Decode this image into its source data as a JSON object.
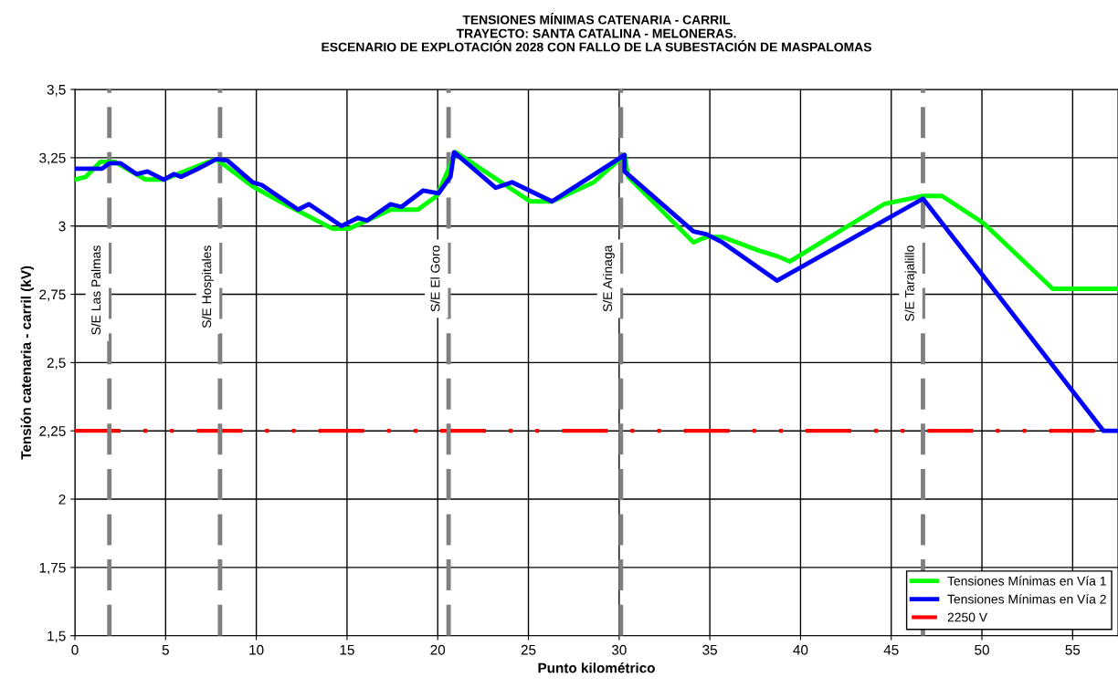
{
  "chart_data": {
    "type": "line",
    "title": "TENSIONES MÍNIMAS CATENARIA - CARRIL\nTRAYECTO: SANTA CATALINA - MELONERAS.\nESCENARIO DE EXPLOTACIÓN 2028 CON FALLO DE LA SUBESTACIÓN DE MASPALOMAS",
    "xlabel": "Punto kilométrico",
    "ylabel": "Tensión catenaria - carril (kV)",
    "xlim": [
      0,
      57.5
    ],
    "xticks": [
      0,
      5,
      10,
      15,
      20,
      25,
      30,
      35,
      40,
      45,
      50,
      55
    ],
    "ylim": [
      1.5,
      3.5
    ],
    "yticks": [
      {
        "value": 1.5,
        "label": "1,5"
      },
      {
        "value": 1.75,
        "label": "1,75"
      },
      {
        "value": 2,
        "label": "2"
      },
      {
        "value": 2.25,
        "label": "2,25"
      },
      {
        "value": 2.5,
        "label": "2,5"
      },
      {
        "value": 2.75,
        "label": "2,75"
      },
      {
        "value": 3,
        "label": "3"
      },
      {
        "value": 3.25,
        "label": "3,25"
      },
      {
        "value": 3.5,
        "label": "3,5"
      }
    ],
    "grid": true,
    "legend": "bottom right",
    "marker": "none",
    "line_style": "solid",
    "series": [
      {
        "name": "Tensiones Mínimas en Vía 1",
        "color": "#00ff00",
        "x": [
          0,
          0.6,
          1.4,
          2.2,
          3.9,
          4.9,
          6.8,
          7.8,
          9.8,
          11.3,
          14.2,
          15.1,
          17.4,
          18.9,
          19.95,
          21.0,
          25.1,
          26.3,
          28.6,
          30.3,
          30.5,
          34.1,
          34.8,
          35.7,
          37.7,
          38.7,
          39.4,
          44.6,
          46.7,
          47.8,
          50.1,
          53.9,
          57.5
        ],
        "values": [
          3.17,
          3.18,
          3.235,
          3.235,
          3.17,
          3.17,
          3.22,
          3.245,
          3.145,
          3.09,
          2.99,
          2.99,
          3.06,
          3.06,
          3.11,
          3.27,
          3.09,
          3.09,
          3.16,
          3.26,
          3.18,
          2.94,
          2.96,
          2.96,
          2.91,
          2.89,
          2.87,
          3.08,
          3.11,
          3.11,
          3.01,
          2.77,
          2.77
        ]
      },
      {
        "name": "Tensiones Mínimas en Vía 2",
        "color": "#0000ff",
        "x": [
          0,
          1.5,
          1.9,
          2.5,
          3.4,
          4.0,
          4.9,
          5.45,
          5.85,
          6.8,
          7.8,
          8.4,
          9.8,
          10.3,
          12.3,
          12.9,
          14.7,
          15.6,
          16.1,
          17.4,
          18.0,
          19.2,
          20.05,
          20.7,
          20.9,
          23.2,
          24.1,
          26.3,
          30.3,
          30.3,
          34.1,
          34.8,
          35.7,
          38.7,
          46.75,
          49.8,
          56.7,
          57.5
        ],
        "values": [
          3.21,
          3.21,
          3.23,
          3.23,
          3.19,
          3.2,
          3.17,
          3.19,
          3.18,
          3.21,
          3.245,
          3.24,
          3.16,
          3.15,
          3.06,
          3.08,
          3.0,
          3.03,
          3.02,
          3.08,
          3.07,
          3.13,
          3.12,
          3.18,
          3.27,
          3.14,
          3.16,
          3.09,
          3.26,
          3.2,
          2.98,
          2.97,
          2.94,
          2.8,
          3.1,
          2.84,
          2.25,
          2.25
        ]
      }
    ],
    "ref_lines": [
      {
        "axis": "y",
        "value": 2.25,
        "label": "2250 V",
        "color": "#ff0000",
        "line_style": "dashdot"
      },
      {
        "axis": "x",
        "value": 1.9,
        "label": "S/E Las Palmas",
        "color": "#808080",
        "line_style": "dashed"
      },
      {
        "axis": "x",
        "value": 8.0,
        "label": "S/E Hospitales",
        "color": "#808080",
        "line_style": "dashed"
      },
      {
        "axis": "x",
        "value": 20.6,
        "label": "S/E El Goro",
        "color": "#808080",
        "line_style": "dashed"
      },
      {
        "axis": "x",
        "value": 30.1,
        "label": "S/E Arinaga",
        "color": "#808080",
        "line_style": "dashed"
      },
      {
        "axis": "x",
        "value": 46.75,
        "label": "S/E Tarajalillo",
        "color": "#808080",
        "line_style": "dashed"
      }
    ]
  }
}
